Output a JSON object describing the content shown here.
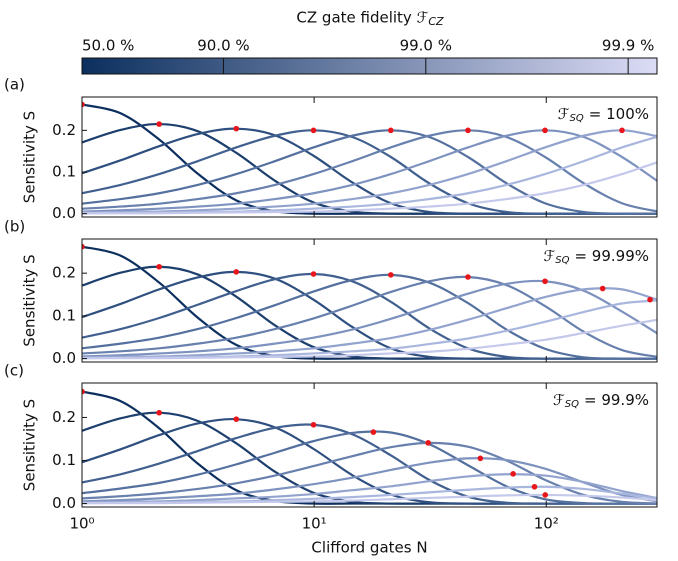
{
  "colorbar": {
    "label": "CZ gate fidelity ℱ",
    "label_sub": "CZ",
    "scale": "log_infidelity",
    "lim": [
      50,
      99.928
    ],
    "ticks": [
      {
        "value": 50.0,
        "label": "50.0 %"
      },
      {
        "value": 90.0,
        "label": "90.0 %"
      },
      {
        "value": 99.0,
        "label": "99.0 %"
      },
      {
        "value": 99.9,
        "label": "99.9 %"
      }
    ],
    "colors": [
      "#0b2f5e",
      "#dcdcf6"
    ]
  },
  "chart_data": [
    {
      "type": "line",
      "panel_label": "(a)",
      "annotation_symbol": "ℱ",
      "annotation_sub": "SQ",
      "annotation": "= 100%",
      "ylabel": "Sensitivity S",
      "log_x": true,
      "xlim": [
        1,
        300
      ],
      "ylim": [
        -0.008,
        0.28
      ],
      "xticks": [
        {
          "value": 1,
          "label": "10⁰"
        },
        {
          "value": 10,
          "label": "10¹"
        },
        {
          "value": 100,
          "label": "10²"
        }
      ],
      "yticks": [
        {
          "value": 0,
          "label": "0.0"
        },
        0.1,
        0.2
      ],
      "x": [
        1,
        1.466,
        2.15,
        3.15,
        4.62,
        6.78,
        9.94,
        14.6,
        21.4,
        31.3,
        46.0,
        67.4,
        98.8,
        145,
        212,
        311
      ],
      "series": [
        {
          "color": "#0d2f5f",
          "values": [
            0.262,
            0.241,
            0.178,
            0.096,
            0.032,
            0.006,
            0,
            0,
            0,
            0,
            0,
            0,
            0,
            0,
            0,
            0
          ]
        },
        {
          "color": "#1d3f6e",
          "values": [
            0.171,
            0.201,
            0.215,
            0.198,
            0.146,
            0.079,
            0.027,
            0.005,
            0,
            0,
            0,
            0,
            0,
            0,
            0,
            0
          ]
        },
        {
          "color": "#2e4f7f",
          "values": [
            0.097,
            0.128,
            0.162,
            0.191,
            0.204,
            0.188,
            0.139,
            0.075,
            0.025,
            0.004,
            0,
            0,
            0,
            0,
            0,
            0
          ]
        },
        {
          "color": "#41608f",
          "values": [
            0.049,
            0.069,
            0.095,
            0.126,
            0.159,
            0.187,
            0.2,
            0.184,
            0.136,
            0.073,
            0.025,
            0.004,
            0,
            0,
            0,
            0
          ]
        },
        {
          "color": "#54709f",
          "values": [
            0.024,
            0.035,
            0.049,
            0.069,
            0.095,
            0.126,
            0.159,
            0.187,
            0.2,
            0.184,
            0.136,
            0.073,
            0.025,
            0.004,
            0,
            0
          ]
        },
        {
          "color": "#6880ae",
          "values": [
            0.012,
            0.017,
            0.024,
            0.035,
            0.049,
            0.069,
            0.095,
            0.126,
            0.159,
            0.187,
            0.2,
            0.184,
            0.136,
            0.073,
            0.025,
            0.004
          ]
        },
        {
          "color": "#7d92bf",
          "values": [
            0.005,
            0.008,
            0.012,
            0.017,
            0.024,
            0.035,
            0.049,
            0.069,
            0.095,
            0.126,
            0.159,
            0.187,
            0.2,
            0.184,
            0.136,
            0.073
          ]
        },
        {
          "color": "#92a3ce",
          "values": [
            0.003,
            0.004,
            0.005,
            0.008,
            0.012,
            0.017,
            0.024,
            0.035,
            0.049,
            0.069,
            0.095,
            0.126,
            0.159,
            0.187,
            0.2,
            0.184
          ]
        },
        {
          "color": "#a9b6de",
          "values": [
            0.001,
            0.002,
            0.003,
            0.004,
            0.005,
            0.008,
            0.012,
            0.017,
            0.024,
            0.035,
            0.049,
            0.069,
            0.095,
            0.126,
            0.159,
            0.187
          ]
        },
        {
          "color": "#c4c9ec",
          "values": [
            0.001,
            0.001,
            0.001,
            0.002,
            0.003,
            0.004,
            0.005,
            0.008,
            0.012,
            0.017,
            0.024,
            0.035,
            0.049,
            0.069,
            0.095,
            0.126
          ]
        }
      ],
      "peaks": {
        "color": "#e8161b",
        "x": [
          1,
          2.15,
          4.62,
          9.94,
          21.4,
          46.0,
          98.8,
          212
        ],
        "y": [
          0.262,
          0.215,
          0.204,
          0.2,
          0.2,
          0.2,
          0.2,
          0.2
        ]
      }
    },
    {
      "type": "line",
      "panel_label": "(b)",
      "annotation_symbol": "ℱ",
      "annotation_sub": "SQ",
      "annotation": "= 99.99%",
      "ylabel": "Sensitivity S",
      "log_x": true,
      "xlim": [
        1,
        300
      ],
      "ylim": [
        -0.008,
        0.28
      ],
      "xticks": [
        {
          "value": 1,
          "label": "10⁰"
        },
        {
          "value": 10,
          "label": "10¹"
        },
        {
          "value": 100,
          "label": "10²"
        }
      ],
      "yticks": [
        {
          "value": 0,
          "label": "0.0"
        },
        0.1,
        0.2
      ],
      "x": [
        1,
        1.466,
        2.15,
        3.15,
        4.62,
        6.78,
        9.94,
        14.6,
        21.4,
        31.3,
        46.0,
        67.4,
        98.8,
        145,
        212,
        311
      ],
      "series": [
        {
          "color": "#0d2f5f",
          "values": [
            0.262,
            0.241,
            0.178,
            0.096,
            0.032,
            0.006,
            0,
            0,
            0,
            0,
            0,
            0,
            0,
            0,
            0,
            0
          ]
        },
        {
          "color": "#1d3f6e",
          "values": [
            0.171,
            0.201,
            0.215,
            0.197,
            0.145,
            0.078,
            0.027,
            0.005,
            0,
            0,
            0,
            0,
            0,
            0,
            0,
            0
          ]
        },
        {
          "color": "#2e4f7f",
          "values": [
            0.097,
            0.128,
            0.162,
            0.19,
            0.203,
            0.187,
            0.138,
            0.074,
            0.024,
            0.004,
            0,
            0,
            0,
            0,
            0,
            0
          ]
        },
        {
          "color": "#41608f",
          "values": [
            0.049,
            0.069,
            0.095,
            0.126,
            0.158,
            0.186,
            0.198,
            0.181,
            0.133,
            0.071,
            0.024,
            0.004,
            0,
            0,
            0,
            0
          ]
        },
        {
          "color": "#54709f",
          "values": [
            0.024,
            0.035,
            0.049,
            0.069,
            0.095,
            0.125,
            0.157,
            0.184,
            0.196,
            0.178,
            0.13,
            0.068,
            0.023,
            0.003,
            0,
            0
          ]
        },
        {
          "color": "#6880ae",
          "values": [
            0.012,
            0.017,
            0.024,
            0.035,
            0.049,
            0.069,
            0.094,
            0.124,
            0.156,
            0.181,
            0.191,
            0.172,
            0.123,
            0.063,
            0.02,
            0.003
          ]
        },
        {
          "color": "#7d92bf",
          "values": [
            0.005,
            0.008,
            0.012,
            0.017,
            0.024,
            0.035,
            0.049,
            0.068,
            0.093,
            0.122,
            0.152,
            0.175,
            0.181,
            0.159,
            0.11,
            0.054
          ]
        },
        {
          "color": "#92a3ce",
          "values": [
            0.003,
            0.004,
            0.005,
            0.008,
            0.012,
            0.017,
            0.024,
            0.035,
            0.048,
            0.067,
            0.091,
            0.118,
            0.144,
            0.162,
            0.162,
            0.135
          ]
        },
        {
          "color": "#a9b6de",
          "values": [
            0.001,
            0.002,
            0.003,
            0.004,
            0.005,
            0.008,
            0.012,
            0.017,
            0.023,
            0.034,
            0.047,
            0.065,
            0.086,
            0.109,
            0.129,
            0.137
          ]
        },
        {
          "color": "#c4c9ec",
          "values": [
            0.001,
            0.001,
            0.001,
            0.002,
            0.003,
            0.004,
            0.005,
            0.008,
            0.012,
            0.016,
            0.023,
            0.033,
            0.044,
            0.06,
            0.077,
            0.092
          ]
        }
      ],
      "peaks": {
        "color": "#e8161b",
        "x": [
          1,
          2.15,
          4.62,
          9.94,
          21.4,
          46.0,
          98.8,
          175,
          280
        ],
        "y": [
          0.262,
          0.215,
          0.203,
          0.198,
          0.196,
          0.191,
          0.181,
          0.164,
          0.138
        ]
      }
    },
    {
      "type": "line",
      "panel_label": "(c)",
      "annotation_symbol": "ℱ",
      "annotation_sub": "SQ",
      "annotation": "= 99.9%",
      "ylabel": "Sensitivity S",
      "xlabel": "Clifford gates N",
      "log_x": true,
      "xlim": [
        1,
        300
      ],
      "ylim": [
        -0.008,
        0.28
      ],
      "xticks": [
        {
          "value": 1,
          "label": "10⁰"
        },
        {
          "value": 10,
          "label": "10¹"
        },
        {
          "value": 100,
          "label": "10²"
        }
      ],
      "yticks": [
        {
          "value": 0,
          "label": "0.0"
        },
        0.1,
        0.2
      ],
      "x": [
        1,
        1.466,
        2.15,
        3.15,
        4.62,
        6.78,
        9.94,
        14.6,
        21.4,
        31.3,
        46.0,
        67.4,
        98.8,
        145,
        212,
        311
      ],
      "series": [
        {
          "color": "#0d2f5f",
          "values": [
            0.26,
            0.238,
            0.175,
            0.093,
            0.031,
            0.006,
            0,
            0,
            0,
            0,
            0,
            0,
            0,
            0,
            0,
            0
          ]
        },
        {
          "color": "#1d3f6e",
          "values": [
            0.169,
            0.198,
            0.211,
            0.192,
            0.14,
            0.074,
            0.025,
            0.004,
            0,
            0,
            0,
            0,
            0,
            0,
            0,
            0
          ]
        },
        {
          "color": "#2e4f7f",
          "values": [
            0.096,
            0.126,
            0.159,
            0.186,
            0.196,
            0.177,
            0.127,
            0.066,
            0.021,
            0.003,
            0,
            0,
            0,
            0,
            0,
            0
          ]
        },
        {
          "color": "#41608f",
          "values": [
            0.049,
            0.068,
            0.093,
            0.122,
            0.152,
            0.176,
            0.183,
            0.161,
            0.112,
            0.055,
            0.016,
            0.002,
            0,
            0,
            0,
            0
          ]
        },
        {
          "color": "#54709f",
          "values": [
            0.024,
            0.035,
            0.048,
            0.067,
            0.091,
            0.118,
            0.145,
            0.164,
            0.165,
            0.138,
            0.089,
            0.04,
            0.01,
            0.001,
            0,
            0
          ]
        },
        {
          "color": "#6880ae",
          "values": [
            0.012,
            0.017,
            0.024,
            0.034,
            0.047,
            0.065,
            0.087,
            0.11,
            0.131,
            0.141,
            0.132,
            0.1,
            0.055,
            0.02,
            0.004,
            0
          ]
        },
        {
          "color": "#7d92bf",
          "values": [
            0.005,
            0.008,
            0.012,
            0.017,
            0.023,
            0.033,
            0.045,
            0.06,
            0.078,
            0.095,
            0.105,
            0.101,
            0.081,
            0.049,
            0.02,
            0.004
          ]
        },
        {
          "color": "#92a3ce",
          "values": [
            0.003,
            0.004,
            0.005,
            0.008,
            0.012,
            0.016,
            0.022,
            0.031,
            0.04,
            0.052,
            0.063,
            0.068,
            0.065,
            0.05,
            0.029,
            0.011
          ]
        },
        {
          "color": "#a9b6de",
          "values": [
            0.001,
            0.002,
            0.003,
            0.004,
            0.005,
            0.008,
            0.011,
            0.015,
            0.02,
            0.026,
            0.032,
            0.037,
            0.039,
            0.034,
            0.023,
            0.011
          ]
        },
        {
          "color": "#c4c9ec",
          "values": [
            0.001,
            0.001,
            0.001,
            0.002,
            0.003,
            0.004,
            0.005,
            0.007,
            0.01,
            0.013,
            0.016,
            0.019,
            0.02,
            0.018,
            0.014,
            0.007
          ]
        }
      ],
      "peaks": {
        "color": "#e8161b",
        "x": [
          1,
          2.15,
          4.62,
          9.94,
          18,
          31,
          52,
          72,
          89,
          99
        ],
        "y": [
          0.26,
          0.211,
          0.196,
          0.183,
          0.166,
          0.141,
          0.105,
          0.069,
          0.039,
          0.02
        ]
      }
    }
  ]
}
